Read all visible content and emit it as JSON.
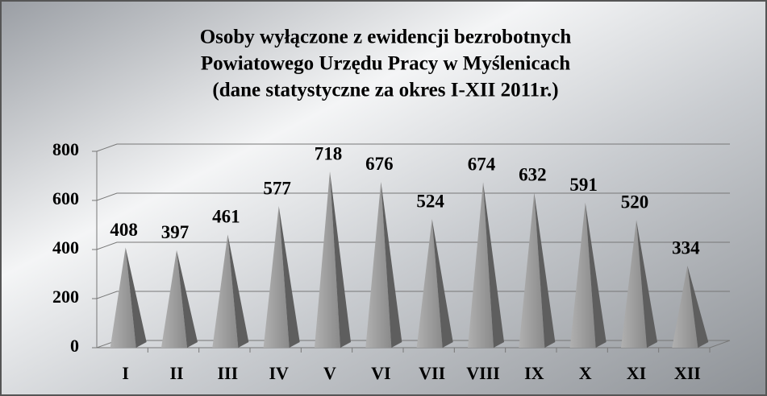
{
  "chart_data": {
    "type": "bar3d-pyramid",
    "title": [
      "Osoby wyłączone z ewidencji bezrobotnych",
      "Powiatowego Urzędu Pracy w Myślenicach",
      "(dane statystyczne za okres I-XII 2011r.)"
    ],
    "categories": [
      "I",
      "II",
      "III",
      "IV",
      "V",
      "VI",
      "VII",
      "VIII",
      "IX",
      "X",
      "XI",
      "XII"
    ],
    "values": [
      408,
      397,
      461,
      577,
      718,
      676,
      524,
      674,
      632,
      591,
      520,
      334
    ],
    "color": "#9a9a9a",
    "ylim": [
      0,
      800
    ],
    "yticks": [
      0,
      200,
      400,
      600,
      800
    ],
    "grid": true
  }
}
